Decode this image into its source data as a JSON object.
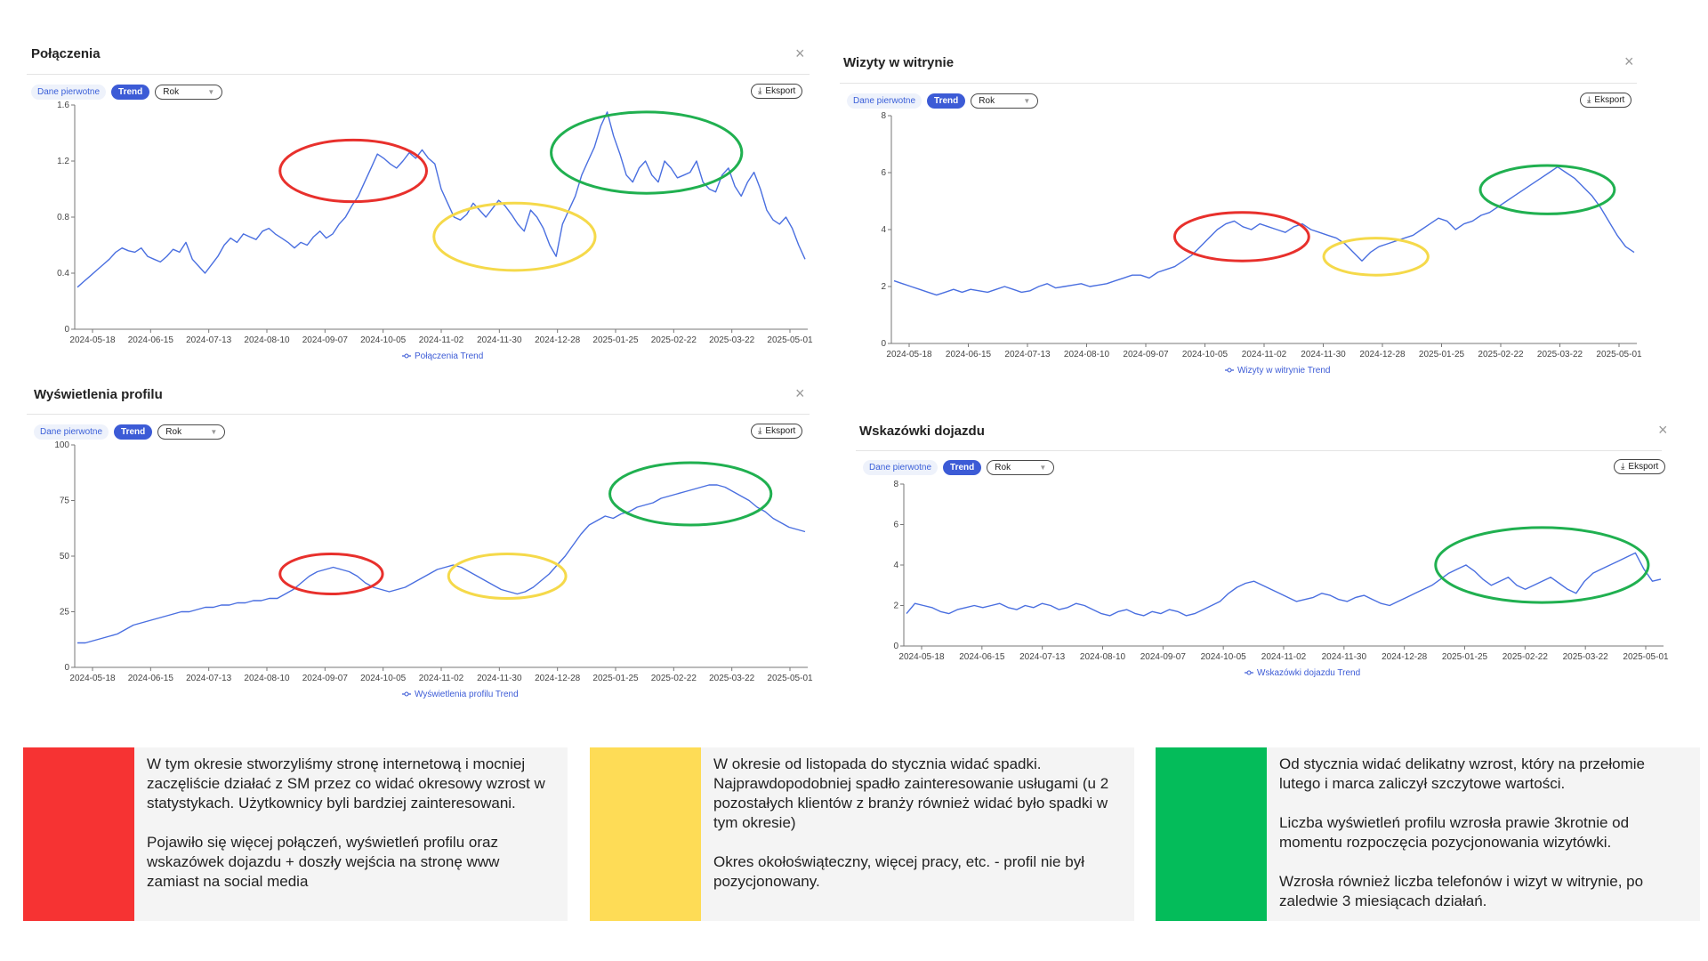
{
  "panels": [
    {
      "title": "Połączenia",
      "raw_label": "Dane pierwotne",
      "trend_label": "Trend",
      "period": "Rok",
      "export_label": "Eksport",
      "close_glyph": "×",
      "legend": "Połączenia Trend",
      "chart_data": {
        "type": "line",
        "series": [
          {
            "name": "Połączenia Trend",
            "y": [
              0.3,
              0.34,
              0.38,
              0.42,
              0.46,
              0.5,
              0.55,
              0.58,
              0.56,
              0.55,
              0.58,
              0.52,
              0.5,
              0.48,
              0.52,
              0.57,
              0.55,
              0.62,
              0.5,
              0.45,
              0.4,
              0.46,
              0.52,
              0.6,
              0.65,
              0.62,
              0.68,
              0.66,
              0.64,
              0.7,
              0.72,
              0.68,
              0.65,
              0.62,
              0.58,
              0.62,
              0.6,
              0.66,
              0.7,
              0.65,
              0.68,
              0.75,
              0.8,
              0.88,
              0.95,
              1.05,
              1.15,
              1.25,
              1.22,
              1.18,
              1.15,
              1.2,
              1.26,
              1.22,
              1.28,
              1.22,
              1.18,
              1.0,
              0.9,
              0.8,
              0.78,
              0.82,
              0.9,
              0.85,
              0.8,
              0.86,
              0.92,
              0.88,
              0.82,
              0.75,
              0.7,
              0.85,
              0.8,
              0.72,
              0.6,
              0.52,
              0.75,
              0.85,
              0.95,
              1.1,
              1.2,
              1.3,
              1.45,
              1.55,
              1.38,
              1.25,
              1.1,
              1.05,
              1.15,
              1.2,
              1.1,
              1.05,
              1.2,
              1.15,
              1.08,
              1.1,
              1.12,
              1.2,
              1.05,
              1.0,
              0.98,
              1.1,
              1.15,
              1.02,
              0.95,
              1.05,
              1.12,
              1.0,
              0.85,
              0.78,
              0.75,
              0.8,
              0.72,
              0.6,
              0.5
            ],
            "color": "#4a6fe0"
          }
        ],
        "x_ticks": [
          "2024-05-18",
          "2024-06-15",
          "2024-07-13",
          "2024-08-10",
          "2024-09-07",
          "2024-10-05",
          "2024-11-02",
          "2024-11-30",
          "2024-12-28",
          "2025-01-25",
          "2025-02-22",
          "2025-03-22",
          "2025-05-01"
        ],
        "y_ticks": [
          "0",
          "0.4",
          "0.8",
          "1.2",
          "1.6"
        ],
        "ylim": [
          0,
          1.6
        ],
        "circles": [
          {
            "color": "#e8302c",
            "cx": 0.38,
            "cy": 1.13,
            "rx": 0.1,
            "ry": 0.22
          },
          {
            "color": "#f5d94a",
            "cx": 0.6,
            "cy": 0.66,
            "rx": 0.11,
            "ry": 0.24
          },
          {
            "color": "#20b050",
            "cx": 0.78,
            "cy": 1.26,
            "rx": 0.13,
            "ry": 0.29
          }
        ]
      }
    },
    {
      "title": "Wizyty w witrynie",
      "raw_label": "Dane pierwotne",
      "trend_label": "Trend",
      "period": "Rok",
      "export_label": "Eksport",
      "close_glyph": "×",
      "legend": "Wizyty w witrynie Trend",
      "chart_data": {
        "type": "line",
        "series": [
          {
            "name": "Wizyty w witrynie Trend",
            "y": [
              2.2,
              2.1,
              2.0,
              1.9,
              1.8,
              1.7,
              1.8,
              1.9,
              1.8,
              1.9,
              1.85,
              1.8,
              1.9,
              2.0,
              1.9,
              1.8,
              1.85,
              2.0,
              2.1,
              1.95,
              2.0,
              2.05,
              2.1,
              2.0,
              2.05,
              2.1,
              2.2,
              2.3,
              2.4,
              2.4,
              2.3,
              2.5,
              2.6,
              2.7,
              2.9,
              3.1,
              3.4,
              3.7,
              4.0,
              4.2,
              4.3,
              4.1,
              4.0,
              4.2,
              4.1,
              4.0,
              3.9,
              4.1,
              4.2,
              4.0,
              3.9,
              3.8,
              3.7,
              3.5,
              3.2,
              2.9,
              3.2,
              3.4,
              3.5,
              3.6,
              3.7,
              3.8,
              4.0,
              4.2,
              4.4,
              4.3,
              4.0,
              4.2,
              4.3,
              4.5,
              4.6,
              4.8,
              5.0,
              5.2,
              5.4,
              5.6,
              5.8,
              6.0,
              6.2,
              6.0,
              5.8,
              5.5,
              5.2,
              4.8,
              4.3,
              3.8,
              3.4,
              3.2
            ],
            "color": "#4a6fe0"
          }
        ],
        "x_ticks": [
          "2024-05-18",
          "2024-06-15",
          "2024-07-13",
          "2024-08-10",
          "2024-09-07",
          "2024-10-05",
          "2024-11-02",
          "2024-11-30",
          "2024-12-28",
          "2025-01-25",
          "2025-02-22",
          "2025-03-22",
          "2025-05-01"
        ],
        "y_ticks": [
          "0",
          "2",
          "4",
          "6",
          "8"
        ],
        "ylim": [
          0,
          8
        ],
        "circles": [
          {
            "color": "#e8302c",
            "cx": 0.47,
            "cy": 3.75,
            "rx": 0.09,
            "ry": 0.85
          },
          {
            "color": "#f5d94a",
            "cx": 0.65,
            "cy": 3.05,
            "rx": 0.07,
            "ry": 0.65
          },
          {
            "color": "#20b050",
            "cx": 0.88,
            "cy": 5.4,
            "rx": 0.09,
            "ry": 0.85
          }
        ]
      }
    },
    {
      "title": "Wyświetlenia profilu",
      "raw_label": "Dane pierwotne",
      "trend_label": "Trend",
      "period": "Rok",
      "export_label": "Eksport",
      "close_glyph": "×",
      "legend": "Wyświetlenia profilu Trend",
      "chart_data": {
        "type": "line",
        "series": [
          {
            "name": "Wyświetlenia profilu Trend",
            "y": [
              11,
              11,
              12,
              13,
              14,
              15,
              17,
              19,
              20,
              21,
              22,
              23,
              24,
              25,
              25,
              26,
              27,
              27,
              28,
              28,
              29,
              29,
              30,
              30,
              31,
              31,
              33,
              35,
              38,
              41,
              43,
              44,
              45,
              44,
              43,
              41,
              38,
              36,
              35,
              34,
              35,
              36,
              38,
              40,
              42,
              44,
              45,
              46,
              45,
              43,
              41,
              39,
              37,
              35,
              34,
              33,
              34,
              36,
              39,
              42,
              46,
              50,
              55,
              60,
              64,
              66,
              68,
              67,
              69,
              70,
              72,
              73,
              74,
              76,
              77,
              78,
              79,
              80,
              81,
              82,
              82,
              81,
              79,
              77,
              75,
              72,
              70,
              67,
              65,
              63,
              62,
              61
            ],
            "color": "#4a6fe0"
          }
        ],
        "x_ticks": [
          "2024-05-18",
          "2024-06-15",
          "2024-07-13",
          "2024-08-10",
          "2024-09-07",
          "2024-10-05",
          "2024-11-02",
          "2024-11-30",
          "2024-12-28",
          "2025-01-25",
          "2025-02-22",
          "2025-03-22",
          "2025-05-01"
        ],
        "y_ticks": [
          "0",
          "25",
          "50",
          "75",
          "100"
        ],
        "ylim": [
          0,
          100
        ],
        "circles": [
          {
            "color": "#e8302c",
            "cx": 0.35,
            "cy": 42,
            "rx": 0.07,
            "ry": 9
          },
          {
            "color": "#f5d94a",
            "cx": 0.59,
            "cy": 41,
            "rx": 0.08,
            "ry": 10
          },
          {
            "color": "#20b050",
            "cx": 0.84,
            "cy": 78,
            "rx": 0.11,
            "ry": 14
          }
        ]
      }
    },
    {
      "title": "Wskazówki dojazdu",
      "raw_label": "Dane pierwotne",
      "trend_label": "Trend",
      "period": "Rok",
      "export_label": "Eksport",
      "close_glyph": "×",
      "legend": "Wskazówki dojazdu Trend",
      "chart_data": {
        "type": "line",
        "series": [
          {
            "name": "Wskazówki dojazdu Trend",
            "y": [
              1.6,
              2.1,
              2.0,
              1.9,
              1.7,
              1.6,
              1.8,
              1.9,
              2.0,
              1.9,
              2.0,
              2.1,
              1.9,
              1.8,
              2.0,
              1.9,
              2.1,
              2.0,
              1.8,
              1.9,
              2.1,
              2.0,
              1.8,
              1.6,
              1.5,
              1.7,
              1.8,
              1.6,
              1.5,
              1.7,
              1.6,
              1.8,
              1.7,
              1.5,
              1.6,
              1.8,
              2.0,
              2.2,
              2.6,
              2.9,
              3.1,
              3.2,
              3.0,
              2.8,
              2.6,
              2.4,
              2.2,
              2.3,
              2.4,
              2.6,
              2.5,
              2.3,
              2.2,
              2.4,
              2.5,
              2.3,
              2.1,
              2.0,
              2.2,
              2.4,
              2.6,
              2.8,
              3.0,
              3.3,
              3.6,
              3.8,
              4.0,
              3.7,
              3.3,
              3.0,
              3.2,
              3.4,
              3.0,
              2.8,
              3.0,
              3.2,
              3.4,
              3.1,
              2.8,
              2.6,
              3.2,
              3.6,
              3.8,
              4.0,
              4.2,
              4.4,
              4.6,
              3.8,
              3.2,
              3.3
            ],
            "color": "#4a6fe0"
          }
        ],
        "x_ticks": [
          "2024-05-18",
          "2024-06-15",
          "2024-07-13",
          "2024-08-10",
          "2024-09-07",
          "2024-10-05",
          "2024-11-02",
          "2024-11-30",
          "2024-12-28",
          "2025-01-25",
          "2025-02-22",
          "2025-03-22",
          "2025-05-01"
        ],
        "y_ticks": [
          "0",
          "2",
          "4",
          "6",
          "8"
        ],
        "ylim": [
          0,
          8
        ],
        "circles": [
          {
            "color": "#20b050",
            "cx": 0.84,
            "cy": 4.0,
            "rx": 0.14,
            "ry": 1.85
          }
        ]
      }
    }
  ],
  "notes": [
    {
      "color": "#f63333",
      "text": "W tym okresie stworzyliśmy stronę internetową i mocniej zaczęliście działać z SM przez co widać okresowy wzrost w statystykach. Użytkownicy byli bardziej zainteresowani.\n\nPojawiło się więcej połączeń, wyświetleń profilu oraz wskazówek dojazdu + doszły wejścia na stronę www zamiast na social media"
    },
    {
      "color": "#fedc56",
      "text": "W okresie od listopada do stycznia widać spadki. Najprawdopodobniej spadło zainteresowanie usługami (u 2 pozostałych klientów z branży również widać było spadki w tym okresie)\n\nOkres okołoświąteczny, więcej pracy, etc. - profil nie był pozycjonowany."
    },
    {
      "color": "#04bc5a",
      "text": "Od stycznia widać delikatny wzrost, który na przełomie lutego i marca zaliczył szczytowe wartości.\n\nLiczba wyświetleń profilu wzrosła prawie 3krotnie od momentu rozpoczęcia pozycjonowania wizytówki.\n\nWzrosła również liczba telefonów i wizyt w witrynie, po zaledwie 3 miesiącach działań."
    }
  ]
}
